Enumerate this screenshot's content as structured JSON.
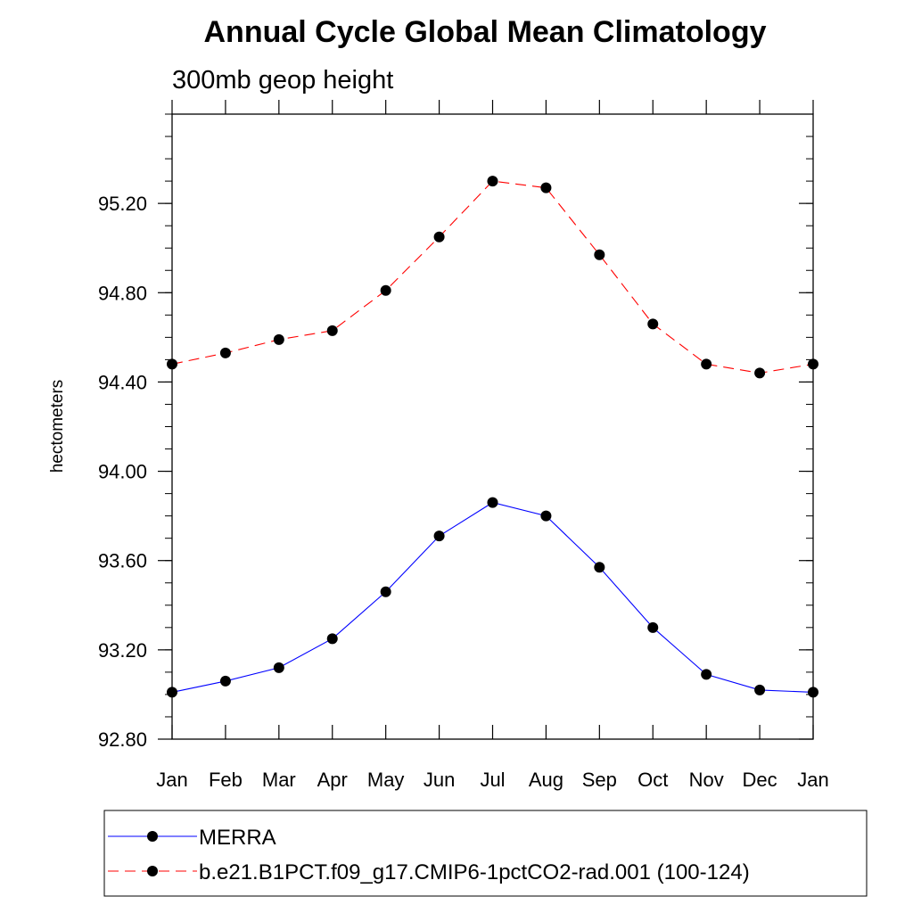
{
  "chart_data": {
    "type": "line",
    "title": "Annual Cycle Global Mean Climatology",
    "subtitle": "300mb geop height",
    "ylabel": "hectometers",
    "xlabel": "",
    "categories": [
      "Jan",
      "Feb",
      "Mar",
      "Apr",
      "May",
      "Jun",
      "Jul",
      "Aug",
      "Sep",
      "Oct",
      "Nov",
      "Dec",
      "Jan"
    ],
    "ylim": [
      92.8,
      95.6
    ],
    "yticks": [
      92.8,
      93.2,
      93.6,
      94.0,
      94.4,
      94.8,
      95.2
    ],
    "ytick_labels": [
      "92.80",
      "93.20",
      "93.60",
      "94.00",
      "94.40",
      "94.80",
      "95.20"
    ],
    "grid": false,
    "legend_position": "bottom",
    "series": [
      {
        "name": "MERRA",
        "color": "#0000ff",
        "line_style": "solid",
        "marker": "filled-circle",
        "values": [
          93.01,
          93.06,
          93.12,
          93.25,
          93.46,
          93.71,
          93.86,
          93.8,
          93.57,
          93.3,
          93.09,
          93.02,
          93.01
        ]
      },
      {
        "name": "b.e21.B1PCT.f09_g17.CMIP6-1pctCO2-rad.001 (100-124)",
        "color": "#ff0000",
        "line_style": "dashed",
        "marker": "filled-circle",
        "values": [
          94.48,
          94.53,
          94.59,
          94.63,
          94.81,
          95.05,
          95.3,
          95.27,
          94.97,
          94.66,
          94.48,
          94.44,
          94.48
        ]
      }
    ]
  }
}
